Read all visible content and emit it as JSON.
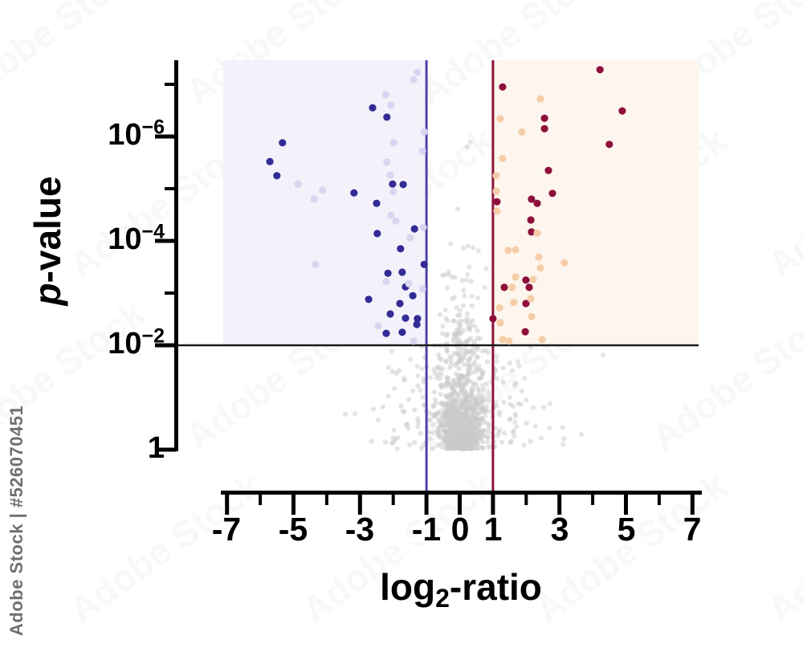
{
  "watermark": {
    "diagonal_text": "Adobe Stock",
    "side_text": "Adobe Stock | #526070451"
  },
  "chart_data": {
    "type": "scatter",
    "subtype": "volcano-plot",
    "title": "",
    "xlabel": "log2-ratio",
    "ylabel": "p-value",
    "xlabel_parts": {
      "main": "log",
      "sub": "2",
      "rest": "-ratio"
    },
    "ylabel_parts": {
      "italic": "p",
      "rest": "-value"
    },
    "x_axis": {
      "range": [
        -7.3,
        7.3
      ],
      "major_ticks": [
        -7,
        -5,
        -3,
        -1,
        0,
        1,
        3,
        5,
        7
      ],
      "minor_ticks": [
        -6,
        -4,
        -2,
        2,
        4,
        6
      ],
      "tick_labels": [
        "-7",
        "-5",
        "-3",
        "-1",
        "0",
        "1",
        "3",
        "5",
        "7"
      ]
    },
    "y_axis": {
      "scale": "log-inverted-p-value",
      "range_neglog10": [
        0,
        7.45
      ],
      "major_ticks_neglog10": [
        6,
        4,
        2,
        0
      ],
      "minor_ticks_neglog10": [
        7,
        5,
        3
      ],
      "tick_labels": [
        {
          "base": "10",
          "exp": "−6"
        },
        {
          "base": "10",
          "exp": "−4"
        },
        {
          "base": "10",
          "exp": "−2"
        },
        {
          "base": "1",
          "exp": ""
        }
      ]
    },
    "thresholds": {
      "p_value_line": {
        "neglog10": 2,
        "label": "10^-2",
        "color": "#1a1a1a"
      },
      "fold_change_lines": [
        {
          "x": -1,
          "color": "#4e42a8"
        },
        {
          "x": 1,
          "color": "#8f1239"
        }
      ]
    },
    "regions": [
      {
        "name": "down-regulated-zone",
        "x_from": -7.12,
        "x_to": -1,
        "neglog10_from": 2,
        "neglog10_to": 7.45,
        "color": "#f3f2fa"
      },
      {
        "name": "up-regulated-zone",
        "x_from": 1,
        "x_to": 7.19,
        "neglog10_from": 2,
        "neglog10_to": 7.45,
        "color": "#fdf6ee"
      }
    ],
    "series": [
      {
        "name": "down-significant",
        "color": "#332b96",
        "points": [
          [
            -2.62,
            6.55
          ],
          [
            -2.19,
            6.37
          ],
          [
            -5.33,
            5.88
          ],
          [
            -5.71,
            5.52
          ],
          [
            -5.5,
            5.25
          ],
          [
            -2.02,
            5.09
          ],
          [
            -1.7,
            5.08
          ],
          [
            -3.18,
            4.92
          ],
          [
            -2.5,
            4.72
          ],
          [
            -2.48,
            4.14
          ],
          [
            -1.36,
            4.23
          ],
          [
            -1.78,
            3.85
          ],
          [
            -1.07,
            3.55
          ],
          [
            -2.16,
            3.38
          ],
          [
            -1.73,
            3.4
          ],
          [
            -1.63,
            3.12
          ],
          [
            -1.41,
            2.95
          ],
          [
            -2.74,
            2.88
          ],
          [
            -1.8,
            2.8
          ],
          [
            -2.09,
            2.6
          ],
          [
            -1.63,
            2.52
          ],
          [
            -1.27,
            2.51
          ],
          [
            -1.29,
            2.4
          ],
          [
            -2.21,
            2.23
          ],
          [
            -1.73,
            2.25
          ]
        ]
      },
      {
        "name": "down-faint",
        "color": "#d9d5f0",
        "points": [
          [
            -1.27,
            7.23
          ],
          [
            -1.39,
            7.09
          ],
          [
            -2.23,
            6.8
          ],
          [
            -2.07,
            6.6
          ],
          [
            -1.07,
            6.09
          ],
          [
            -1.99,
            5.88
          ],
          [
            -1.12,
            5.72
          ],
          [
            -2.19,
            5.51
          ],
          [
            -2.09,
            5.26
          ],
          [
            -4.87,
            5.09
          ],
          [
            -4.12,
            4.97
          ],
          [
            -1.99,
            4.94
          ],
          [
            -4.38,
            4.8
          ],
          [
            -2.07,
            4.49
          ],
          [
            -1.92,
            4.38
          ],
          [
            -1.1,
            4.26
          ],
          [
            -1.49,
            4.06
          ],
          [
            -4.34,
            3.55
          ],
          [
            -2.21,
            3.22
          ],
          [
            -1.53,
            3.18
          ],
          [
            -1.12,
            3.08
          ],
          [
            -2.45,
            2.37
          ],
          [
            -1.39,
            2.08
          ]
        ]
      },
      {
        "name": "up-significant",
        "color": "#8e0f3c",
        "points": [
          [
            4.22,
            7.28
          ],
          [
            1.29,
            6.95
          ],
          [
            4.89,
            6.49
          ],
          [
            2.55,
            6.35
          ],
          [
            2.55,
            6.15
          ],
          [
            4.5,
            5.85
          ],
          [
            2.67,
            5.35
          ],
          [
            2.79,
            4.91
          ],
          [
            2.16,
            4.8
          ],
          [
            2.33,
            4.72
          ],
          [
            1.12,
            4.75
          ],
          [
            2.14,
            4.4
          ],
          [
            2.16,
            4.17
          ],
          [
            1.99,
            3.25
          ],
          [
            2.09,
            3.11
          ],
          [
            1.34,
            3.11
          ],
          [
            1.99,
            2.8
          ],
          [
            1.0,
            2.51
          ],
          [
            1.97,
            2.26
          ]
        ]
      },
      {
        "name": "up-faint",
        "color": "#f6cda9",
        "points": [
          [
            2.43,
            6.72
          ],
          [
            1.22,
            6.34
          ],
          [
            1.87,
            6.09
          ],
          [
            1.29,
            5.58
          ],
          [
            1.1,
            5.25
          ],
          [
            1.1,
            4.95
          ],
          [
            1.12,
            4.57
          ],
          [
            2.33,
            4.15
          ],
          [
            1.46,
            3.82
          ],
          [
            1.68,
            3.83
          ],
          [
            2.38,
            3.69
          ],
          [
            3.15,
            3.58
          ],
          [
            2.43,
            3.48
          ],
          [
            1.68,
            3.31
          ],
          [
            2.21,
            3.26
          ],
          [
            1.58,
            3.11
          ],
          [
            2.14,
            2.89
          ],
          [
            1.63,
            2.82
          ],
          [
            1.2,
            2.72
          ],
          [
            2.16,
            2.55
          ],
          [
            1.22,
            2.43
          ],
          [
            1.29,
            2.11
          ],
          [
            1.48,
            2.08
          ],
          [
            2.48,
            2.11
          ]
        ]
      },
      {
        "name": "non-significant-background",
        "color": "#c9c9c9",
        "opacity": 0.5,
        "generated": true,
        "count": 1150,
        "seed": 7,
        "description": "Dense grey cloud centered at log2-ratio 0; densest between p=1 and p=10^-2, funnel narrows toward p=1; above p=10^-2 confined between the two fold-change lines, thinning toward the top."
      }
    ]
  }
}
